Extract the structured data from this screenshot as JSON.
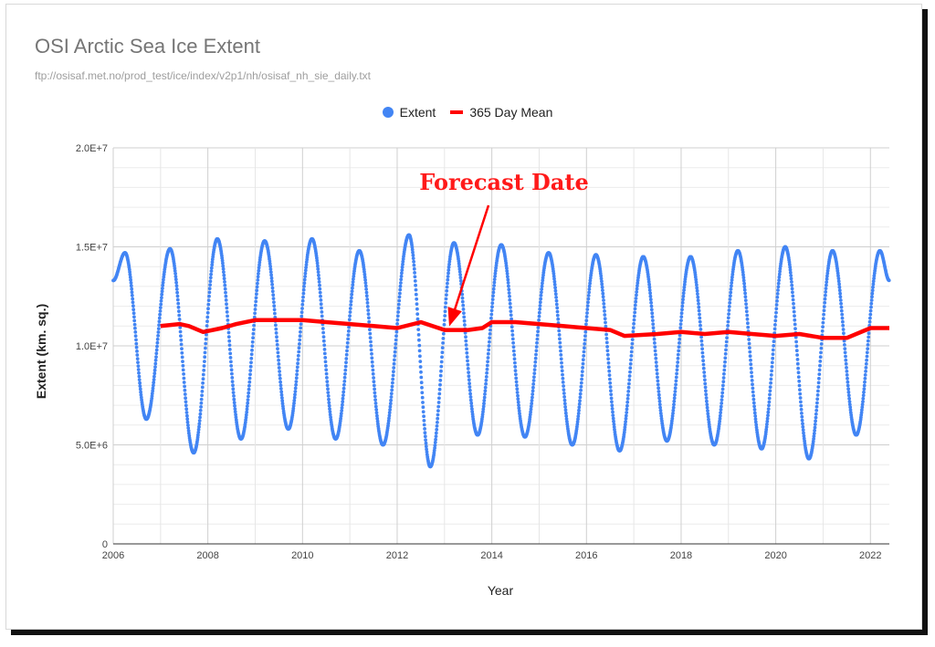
{
  "chart_data": {
    "type": "line",
    "title": "OSI Arctic Sea Ice Extent",
    "subtitle": "ftp://osisaf.met.no/prod_test/ice/index/v2p1/nh/osisaf_nh_sie_daily.txt",
    "xlabel": "Year",
    "ylabel": "Extent (km. sq.)",
    "xlim": [
      2006,
      2022.4
    ],
    "ylim": [
      0,
      20000000
    ],
    "x_ticks": [
      "2006",
      "2008",
      "2010",
      "2012",
      "2014",
      "2016",
      "2018",
      "2020",
      "2022"
    ],
    "y_ticks": [
      "0",
      "5.0E+6",
      "1.0E+7",
      "1.5E+7",
      "2.0E+7"
    ],
    "grid": true,
    "legend_position": "top-center",
    "series": [
      {
        "name": "Extent",
        "style": "points",
        "color": "#4285f4",
        "annual_maxima": [
          {
            "x": 2006.25,
            "y": 14700000
          },
          {
            "x": 2007.2,
            "y": 14900000
          },
          {
            "x": 2008.2,
            "y": 15400000
          },
          {
            "x": 2009.2,
            "y": 15300000
          },
          {
            "x": 2010.2,
            "y": 15400000
          },
          {
            "x": 2011.2,
            "y": 14800000
          },
          {
            "x": 2012.25,
            "y": 15600000
          },
          {
            "x": 2013.2,
            "y": 15200000
          },
          {
            "x": 2014.2,
            "y": 15100000
          },
          {
            "x": 2015.2,
            "y": 14700000
          },
          {
            "x": 2016.2,
            "y": 14600000
          },
          {
            "x": 2017.2,
            "y": 14500000
          },
          {
            "x": 2018.2,
            "y": 14500000
          },
          {
            "x": 2019.2,
            "y": 14800000
          },
          {
            "x": 2020.2,
            "y": 15000000
          },
          {
            "x": 2021.2,
            "y": 14800000
          },
          {
            "x": 2022.2,
            "y": 14800000
          }
        ],
        "annual_minima": [
          {
            "x": 2006.7,
            "y": 6300000
          },
          {
            "x": 2007.7,
            "y": 4600000
          },
          {
            "x": 2008.7,
            "y": 5300000
          },
          {
            "x": 2009.7,
            "y": 5800000
          },
          {
            "x": 2010.7,
            "y": 5300000
          },
          {
            "x": 2011.7,
            "y": 5000000
          },
          {
            "x": 2012.7,
            "y": 3900000
          },
          {
            "x": 2013.7,
            "y": 5500000
          },
          {
            "x": 2014.7,
            "y": 5400000
          },
          {
            "x": 2015.7,
            "y": 5000000
          },
          {
            "x": 2016.7,
            "y": 4700000
          },
          {
            "x": 2017.7,
            "y": 5200000
          },
          {
            "x": 2018.7,
            "y": 5000000
          },
          {
            "x": 2019.7,
            "y": 4800000
          },
          {
            "x": 2020.7,
            "y": 4300000
          },
          {
            "x": 2021.7,
            "y": 5500000
          }
        ],
        "start": {
          "x": 2006.0,
          "y": 13300000
        },
        "end": {
          "x": 2022.4,
          "y": 13300000
        }
      },
      {
        "name": "365 Day  Mean",
        "style": "line",
        "color": "#ff0000",
        "x": [
          2007.0,
          2007.4,
          2007.6,
          2007.9,
          2008.3,
          2008.6,
          2009.0,
          2009.5,
          2010.0,
          2010.5,
          2011.0,
          2011.5,
          2012.0,
          2012.5,
          2013.0,
          2013.5,
          2013.8,
          2014.0,
          2014.5,
          2015.0,
          2015.5,
          2016.0,
          2016.5,
          2016.8,
          2017.5,
          2018.0,
          2018.5,
          2019.0,
          2019.5,
          2020.0,
          2020.5,
          2021.0,
          2021.5,
          2022.0,
          2022.4
        ],
        "values": [
          11000000,
          11100000,
          11000000,
          10700000,
          10900000,
          11100000,
          11300000,
          11300000,
          11300000,
          11200000,
          11100000,
          11000000,
          10900000,
          11200000,
          10800000,
          10800000,
          10900000,
          11200000,
          11200000,
          11100000,
          11000000,
          10900000,
          10800000,
          10500000,
          10600000,
          10700000,
          10600000,
          10700000,
          10600000,
          10500000,
          10600000,
          10400000,
          10400000,
          10900000,
          10900000
        ]
      }
    ],
    "annotations": [
      {
        "text": "Forecast Date",
        "color": "#ff0000",
        "arrow_to": {
          "x": 2013.1,
          "y": 10800000
        }
      }
    ]
  }
}
